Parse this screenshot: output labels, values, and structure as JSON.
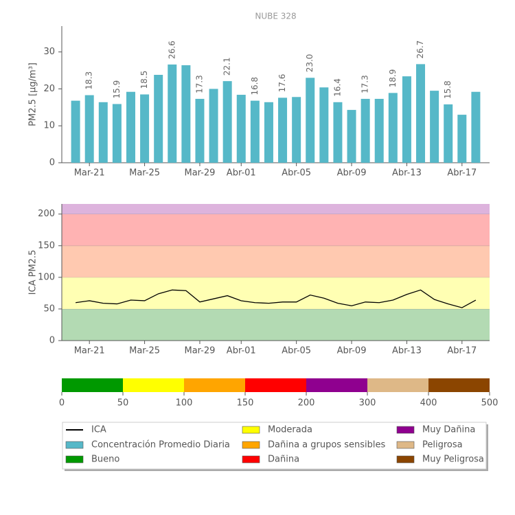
{
  "chart_data": [
    {
      "type": "bar",
      "title": "NUBE 328",
      "y_label": "PM2.5 [μg/m³]",
      "categories": [
        null,
        "Mar-21",
        null,
        null,
        null,
        "Mar-25",
        null,
        null,
        null,
        "Mar-29",
        null,
        null,
        "Abr-01",
        null,
        null,
        null,
        "Abr-05",
        null,
        null,
        null,
        "Abr-09",
        null,
        null,
        null,
        "Abr-13",
        null,
        null,
        null,
        "Abr-17",
        null
      ],
      "values": [
        16.8,
        18.3,
        16.4,
        15.9,
        19.2,
        18.5,
        23.8,
        26.6,
        26.4,
        17.3,
        20.0,
        22.1,
        18.4,
        16.8,
        16.4,
        17.6,
        17.8,
        23.0,
        20.4,
        16.4,
        14.3,
        17.3,
        17.3,
        18.9,
        23.4,
        26.7,
        19.5,
        15.8,
        13.0,
        19.2
      ],
      "value_labels": [
        null,
        "18.3",
        null,
        "15.9",
        null,
        "18.5",
        null,
        "26.6",
        null,
        "17.3",
        null,
        "22.1",
        null,
        "16.8",
        null,
        "17.6",
        null,
        "23.0",
        null,
        "16.4",
        null,
        "17.3",
        null,
        "18.9",
        null,
        "26.7",
        null,
        "15.8",
        null,
        null
      ],
      "color": "#56b8c8",
      "ylim": [
        0,
        37
      ],
      "yticks": [
        0,
        10,
        20,
        30
      ]
    },
    {
      "type": "line",
      "y_label": "ICA PM2.5",
      "categories": [
        null,
        "Mar-21",
        null,
        null,
        null,
        "Mar-25",
        null,
        null,
        null,
        "Mar-29",
        null,
        null,
        "Abr-01",
        null,
        null,
        null,
        "Abr-05",
        null,
        null,
        null,
        "Abr-09",
        null,
        null,
        null,
        "Abr-13",
        null,
        null,
        null,
        "Abr-17",
        null
      ],
      "values": [
        60,
        63,
        59,
        58,
        64,
        63,
        74,
        80,
        79,
        61,
        66,
        71,
        63,
        60,
        59,
        61,
        61,
        72,
        67,
        59,
        55,
        61,
        60,
        64,
        73,
        80,
        65,
        58,
        52,
        64
      ],
      "color": "#000000",
      "bands": [
        {
          "from": 0,
          "to": 50,
          "color": "#b3dab3"
        },
        {
          "from": 50,
          "to": 100,
          "color": "#ffffb3"
        },
        {
          "from": 100,
          "to": 150,
          "color": "#ffc9b0"
        },
        {
          "from": 150,
          "to": 200,
          "color": "#ffb3b3"
        },
        {
          "from": 200,
          "to": 300,
          "color": "#ddb3dd"
        }
      ],
      "ylim": [
        0,
        216
      ],
      "yticks": [
        0,
        50,
        100,
        150,
        200
      ]
    },
    {
      "type": "colorbar",
      "ticks": [
        0,
        50,
        100,
        150,
        200,
        300,
        400,
        500
      ],
      "colors": [
        "#009900",
        "#ffff00",
        "#ffa500",
        "#ff0000",
        "#8f008f",
        "#deb887",
        "#8b4500"
      ]
    }
  ],
  "legend": [
    {
      "label": "ICA",
      "color": "#000000",
      "marker": "line"
    },
    {
      "label": "Concentración Promedio Diaria",
      "color": "#56b8c8",
      "marker": "patch"
    },
    {
      "label": "Bueno",
      "color": "#009900",
      "marker": "patch"
    },
    {
      "label": "Moderada",
      "color": "#ffff00",
      "marker": "patch"
    },
    {
      "label": "Dañina a grupos sensibles",
      "color": "#ffa500",
      "marker": "patch"
    },
    {
      "label": "Dañina",
      "color": "#ff0000",
      "marker": "patch"
    },
    {
      "label": "Muy Dañina",
      "color": "#8f008f",
      "marker": "patch"
    },
    {
      "label": "Peligrosa",
      "color": "#deb887",
      "marker": "patch"
    },
    {
      "label": "Muy Peligrosa",
      "color": "#8b4500",
      "marker": "patch"
    }
  ]
}
